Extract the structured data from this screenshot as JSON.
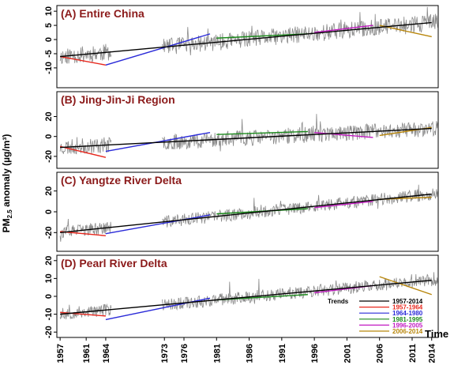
{
  "chart_data": {
    "type": "line",
    "ylabel": "PM2.5 anomaly (µg/m³)",
    "ylabel_main": "PM",
    "ylabel_sub": "2.5",
    "ylabel_rest": " anomaly (µg/m³)",
    "xlabel": "Time",
    "x_ticks": [
      "1957",
      "1961",
      "1964",
      "1973",
      "1976",
      "1981",
      "1986",
      "1991",
      "1996",
      "2001",
      "2006",
      "2011",
      "2014"
    ],
    "x_tick_years": [
      1957,
      1961,
      1964,
      1973,
      1976,
      1981,
      1986,
      1991,
      1996,
      2001,
      2006,
      2011,
      2014
    ],
    "xlim": [
      1956.5,
      2015
    ],
    "data_gap": [
      1964.9,
      1972.6
    ],
    "legend": {
      "title": "Trends",
      "entries": [
        {
          "label": "1957-2014",
          "color": "#000000"
        },
        {
          "label": "1957-1964",
          "color": "#e8281e"
        },
        {
          "label": "1964-1980",
          "color": "#2a2ad8"
        },
        {
          "label": "1981-1995",
          "color": "#1a8a1a"
        },
        {
          "label": "1996-2005",
          "color": "#c21ac2"
        },
        {
          "label": "2006-2014",
          "color": "#b8860b"
        }
      ]
    },
    "panels": [
      {
        "title": "(A) Entire China",
        "ylim": [
          -17,
          12
        ],
        "yticks": [
          -10,
          -5,
          0,
          5,
          10
        ],
        "ytick_labels": [
          "-10",
          "-5",
          "0",
          "5",
          "10"
        ],
        "noise": 3,
        "seed": 11,
        "trends": [
          {
            "period": "1957-2014",
            "start": [
              1957,
              -6
            ],
            "end": [
              2014,
              6
            ]
          },
          {
            "period": "1957-1964",
            "start": [
              1957,
              -6
            ],
            "end": [
              1964,
              -9
            ]
          },
          {
            "period": "1964-1980",
            "start": [
              1964,
              -9
            ],
            "end": [
              1980,
              2
            ]
          },
          {
            "period": "1981-1995",
            "start": [
              1981,
              0.5
            ],
            "end": [
              1995,
              2
            ]
          },
          {
            "period": "1996-2005",
            "start": [
              1996,
              2.5
            ],
            "end": [
              2005,
              5
            ]
          },
          {
            "period": "2006-2014",
            "start": [
              2006,
              5
            ],
            "end": [
              2014,
              1
            ]
          }
        ]
      },
      {
        "title": "(B) Jing-Jin-Ji Region",
        "ylim": [
          -32,
          45
        ],
        "yticks": [
          -20,
          0,
          20
        ],
        "ytick_labels": [
          "-20",
          "0",
          "20"
        ],
        "noise": 8,
        "seed": 23,
        "trends": [
          {
            "period": "1957-2014",
            "start": [
              1957,
              -11
            ],
            "end": [
              2014,
              8
            ]
          },
          {
            "period": "1957-1964",
            "start": [
              1957,
              -10
            ],
            "end": [
              1964,
              -21
            ]
          },
          {
            "period": "1964-1980",
            "start": [
              1964,
              -15
            ],
            "end": [
              1980,
              4
            ]
          },
          {
            "period": "1981-1995",
            "start": [
              1981,
              2
            ],
            "end": [
              1995,
              5
            ]
          },
          {
            "period": "1996-2005",
            "start": [
              1996,
              4
            ],
            "end": [
              2005,
              -1
            ]
          },
          {
            "period": "2006-2014",
            "start": [
              2006,
              1
            ],
            "end": [
              2014,
              9
            ]
          }
        ]
      },
      {
        "title": "(C) Yangtze River Delta",
        "ylim": [
          -38,
          38
        ],
        "yticks": [
          -20,
          0,
          20
        ],
        "ytick_labels": [
          "-20",
          "0",
          "20"
        ],
        "noise": 6,
        "seed": 37,
        "trends": [
          {
            "period": "1957-2014",
            "start": [
              1957,
              -20
            ],
            "end": [
              2014,
              17
            ]
          },
          {
            "period": "1957-1964",
            "start": [
              1957,
              -19
            ],
            "end": [
              1964,
              -23
            ]
          },
          {
            "period": "1964-1980",
            "start": [
              1964,
              -21
            ],
            "end": [
              1980,
              -3
            ]
          },
          {
            "period": "1981-1995",
            "start": [
              1981,
              -2
            ],
            "end": [
              1995,
              3
            ]
          },
          {
            "period": "1996-2005",
            "start": [
              1996,
              4
            ],
            "end": [
              2005,
              10
            ]
          },
          {
            "period": "2006-2014",
            "start": [
              2006,
              12
            ],
            "end": [
              2014,
              14
            ]
          }
        ]
      },
      {
        "title": "(D) Pearl River Delta",
        "ylim": [
          -23,
          23
        ],
        "yticks": [
          -20,
          -10,
          0,
          10,
          20
        ],
        "ytick_labels": [
          "-20",
          "-10",
          "0",
          "10",
          "20"
        ],
        "noise": 3.5,
        "seed": 53,
        "trends": [
          {
            "period": "1957-2014",
            "start": [
              1957,
              -10
            ],
            "end": [
              2014,
              9
            ]
          },
          {
            "period": "1957-1964",
            "start": [
              1957,
              -9
            ],
            "end": [
              1964,
              -11
            ]
          },
          {
            "period": "1964-1980",
            "start": [
              1964,
              -13
            ],
            "end": [
              1980,
              -1
            ]
          },
          {
            "period": "1981-1995",
            "start": [
              1981,
              -2
            ],
            "end": [
              1995,
              1
            ]
          },
          {
            "period": "1996-2005",
            "start": [
              1996,
              2
            ],
            "end": [
              2005,
              6
            ]
          },
          {
            "period": "2006-2014",
            "start": [
              2006,
              11
            ],
            "end": [
              2014,
              1
            ]
          }
        ]
      }
    ]
  }
}
